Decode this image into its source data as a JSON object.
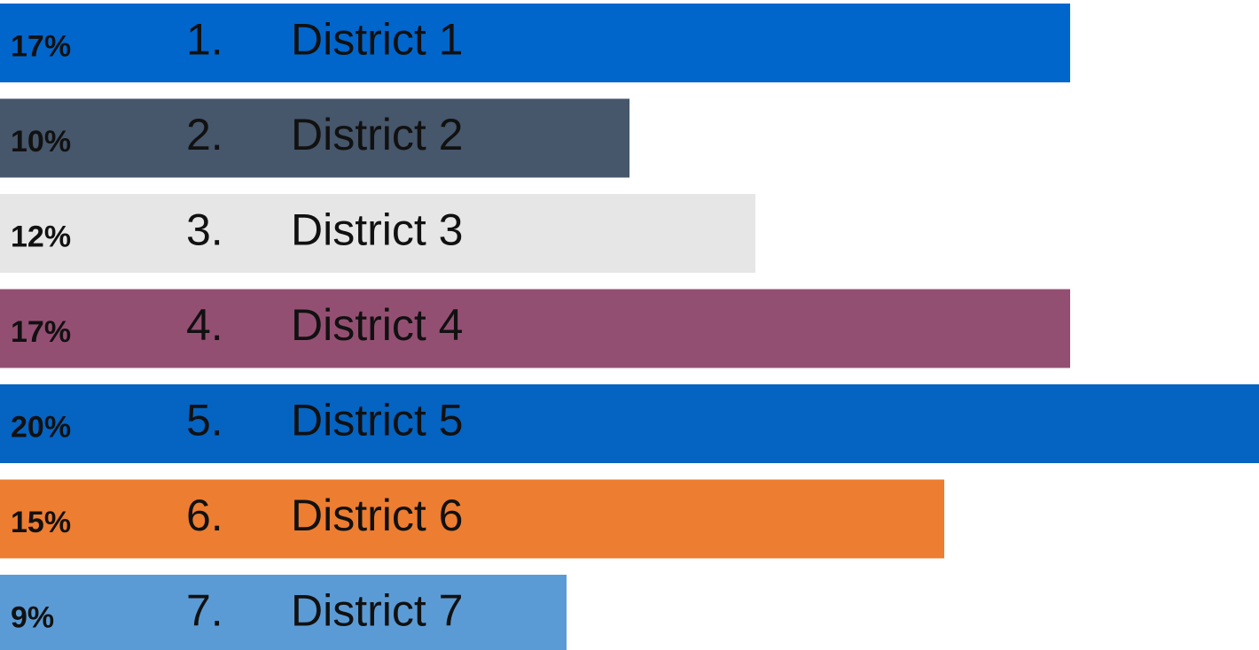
{
  "chart_data": {
    "type": "bar",
    "orientation": "horizontal",
    "ranks": [
      "1.",
      "2.",
      "3.",
      "4.",
      "5.",
      "6.",
      "7."
    ],
    "categories": [
      "District 1",
      "District 2",
      "District 3",
      "District 4",
      "District 5",
      "District 6",
      "District 7"
    ],
    "values": [
      17,
      10,
      12,
      17,
      20,
      15,
      9
    ],
    "value_labels": [
      "17%",
      "10%",
      "12%",
      "17%",
      "20%",
      "15%",
      "9%"
    ],
    "colors": [
      "#0066cc",
      "#46566b",
      "#e6e6e6",
      "#934f72",
      "#0563c1",
      "#ed7d31",
      "#5b9bd5"
    ]
  }
}
